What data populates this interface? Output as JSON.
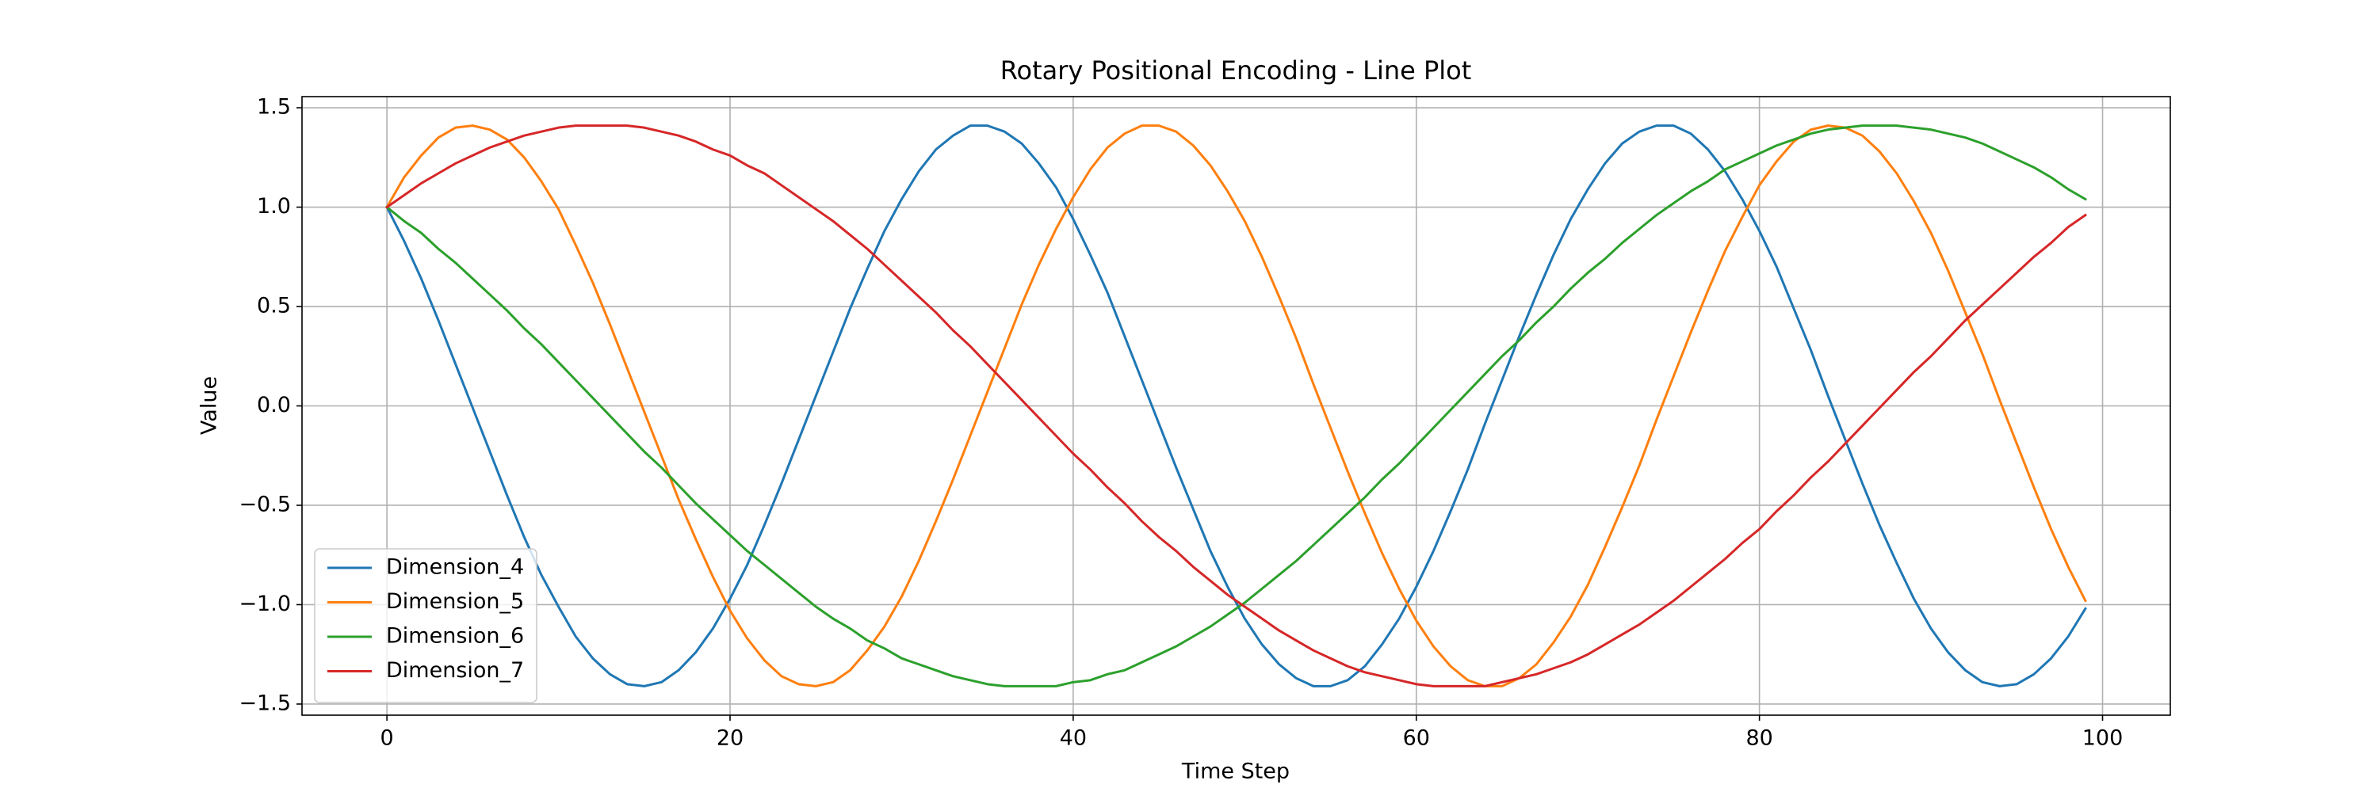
{
  "chart_data": {
    "type": "line",
    "title": "Rotary Positional Encoding - Line Plot",
    "x_label": "Time Step",
    "y_label": "Value",
    "x": [
      0,
      1,
      2,
      3,
      4,
      5,
      6,
      7,
      8,
      9,
      10,
      11,
      12,
      13,
      14,
      15,
      16,
      17,
      18,
      19,
      20,
      21,
      22,
      23,
      24,
      25,
      26,
      27,
      28,
      29,
      30,
      31,
      32,
      33,
      34,
      35,
      36,
      37,
      38,
      39,
      40,
      41,
      42,
      43,
      44,
      45,
      46,
      47,
      48,
      49,
      50,
      51,
      52,
      53,
      54,
      55,
      56,
      57,
      58,
      59,
      60,
      61,
      62,
      63,
      64,
      65,
      66,
      67,
      68,
      69,
      70,
      71,
      72,
      73,
      74,
      75,
      76,
      77,
      78,
      79,
      80,
      81,
      82,
      83,
      84,
      85,
      86,
      87,
      88,
      89,
      90,
      91,
      92,
      93,
      94,
      95,
      96,
      97,
      98,
      99
    ],
    "series": [
      {
        "name": "Dimension_4",
        "color": "#1f77b4",
        "values": [
          1.0,
          0.83,
          0.64,
          0.43,
          0.21,
          -0.01,
          -0.23,
          -0.45,
          -0.66,
          -0.85,
          -1.01,
          -1.16,
          -1.27,
          -1.35,
          -1.4,
          -1.41,
          -1.39,
          -1.33,
          -1.24,
          -1.12,
          -0.97,
          -0.8,
          -0.6,
          -0.39,
          -0.17,
          0.05,
          0.27,
          0.49,
          0.69,
          0.88,
          1.04,
          1.18,
          1.29,
          1.36,
          1.41,
          1.41,
          1.38,
          1.32,
          1.22,
          1.1,
          0.94,
          0.76,
          0.57,
          0.35,
          0.13,
          -0.09,
          -0.31,
          -0.52,
          -0.73,
          -0.91,
          -1.07,
          -1.2,
          -1.3,
          -1.37,
          -1.41,
          -1.41,
          -1.38,
          -1.31,
          -1.2,
          -1.07,
          -0.91,
          -0.73,
          -0.53,
          -0.32,
          -0.09,
          0.13,
          0.35,
          0.56,
          0.76,
          0.94,
          1.09,
          1.22,
          1.32,
          1.38,
          1.41,
          1.41,
          1.37,
          1.29,
          1.18,
          1.04,
          0.88,
          0.7,
          0.49,
          0.28,
          0.05,
          -0.17,
          -0.39,
          -0.6,
          -0.79,
          -0.97,
          -1.12,
          -1.24,
          -1.33,
          -1.39,
          -1.41,
          -1.4,
          -1.35,
          -1.27,
          -1.16,
          -1.02
        ]
      },
      {
        "name": "Dimension_5",
        "color": "#ff7f0e",
        "values": [
          1.0,
          1.15,
          1.26,
          1.35,
          1.4,
          1.41,
          1.39,
          1.34,
          1.25,
          1.13,
          0.99,
          0.81,
          0.62,
          0.41,
          0.19,
          -0.03,
          -0.25,
          -0.47,
          -0.67,
          -0.86,
          -1.03,
          -1.17,
          -1.28,
          -1.36,
          -1.4,
          -1.41,
          -1.39,
          -1.33,
          -1.23,
          -1.11,
          -0.96,
          -0.78,
          -0.58,
          -0.37,
          -0.15,
          0.07,
          0.29,
          0.51,
          0.71,
          0.89,
          1.05,
          1.19,
          1.3,
          1.37,
          1.41,
          1.41,
          1.38,
          1.31,
          1.21,
          1.08,
          0.93,
          0.75,
          0.55,
          0.34,
          0.11,
          -0.11,
          -0.33,
          -0.54,
          -0.74,
          -0.92,
          -1.08,
          -1.21,
          -1.31,
          -1.38,
          -1.41,
          -1.41,
          -1.37,
          -1.3,
          -1.19,
          -1.06,
          -0.9,
          -0.71,
          -0.51,
          -0.3,
          -0.07,
          0.15,
          0.37,
          0.58,
          0.78,
          0.95,
          1.11,
          1.23,
          1.33,
          1.39,
          1.41,
          1.4,
          1.36,
          1.28,
          1.17,
          1.03,
          0.87,
          0.68,
          0.47,
          0.26,
          0.03,
          -0.19,
          -0.41,
          -0.62,
          -0.81,
          -0.98
        ]
      },
      {
        "name": "Dimension_6",
        "color": "#2ca02c",
        "values": [
          1.0,
          0.93,
          0.87,
          0.79,
          0.72,
          0.64,
          0.56,
          0.48,
          0.39,
          0.31,
          0.22,
          0.13,
          0.04,
          -0.05,
          -0.14,
          -0.23,
          -0.31,
          -0.4,
          -0.49,
          -0.57,
          -0.65,
          -0.73,
          -0.8,
          -0.87,
          -0.94,
          -1.01,
          -1.07,
          -1.12,
          -1.18,
          -1.22,
          -1.27,
          -1.3,
          -1.33,
          -1.36,
          -1.38,
          -1.4,
          -1.41,
          -1.41,
          -1.41,
          -1.41,
          -1.39,
          -1.38,
          -1.35,
          -1.33,
          -1.29,
          -1.25,
          -1.21,
          -1.16,
          -1.11,
          -1.05,
          -0.99,
          -0.92,
          -0.85,
          -0.78,
          -0.7,
          -0.62,
          -0.54,
          -0.46,
          -0.37,
          -0.29,
          -0.2,
          -0.11,
          -0.02,
          0.07,
          0.16,
          0.25,
          0.33,
          0.42,
          0.5,
          0.59,
          0.67,
          0.74,
          0.82,
          0.89,
          0.96,
          1.02,
          1.08,
          1.13,
          1.19,
          1.23,
          1.27,
          1.31,
          1.34,
          1.37,
          1.39,
          1.4,
          1.41,
          1.41,
          1.41,
          1.4,
          1.39,
          1.37,
          1.35,
          1.32,
          1.28,
          1.24,
          1.2,
          1.15,
          1.09,
          1.04
        ]
      },
      {
        "name": "Dimension_7",
        "color": "#d62728",
        "values": [
          1.0,
          1.06,
          1.12,
          1.17,
          1.22,
          1.26,
          1.3,
          1.33,
          1.36,
          1.38,
          1.4,
          1.41,
          1.41,
          1.41,
          1.41,
          1.4,
          1.38,
          1.36,
          1.33,
          1.29,
          1.26,
          1.21,
          1.17,
          1.11,
          1.05,
          0.99,
          0.93,
          0.86,
          0.79,
          0.71,
          0.63,
          0.55,
          0.47,
          0.38,
          0.3,
          0.21,
          0.12,
          0.03,
          -0.06,
          -0.15,
          -0.24,
          -0.32,
          -0.41,
          -0.49,
          -0.58,
          -0.66,
          -0.73,
          -0.81,
          -0.88,
          -0.95,
          -1.01,
          -1.07,
          -1.13,
          -1.18,
          -1.23,
          -1.27,
          -1.31,
          -1.34,
          -1.36,
          -1.38,
          -1.4,
          -1.41,
          -1.41,
          -1.41,
          -1.41,
          -1.39,
          -1.37,
          -1.35,
          -1.32,
          -1.29,
          -1.25,
          -1.2,
          -1.15,
          -1.1,
          -1.04,
          -0.98,
          -0.91,
          -0.84,
          -0.77,
          -0.69,
          -0.62,
          -0.53,
          -0.45,
          -0.36,
          -0.28,
          -0.19,
          -0.1,
          -0.01,
          0.08,
          0.17,
          0.25,
          0.34,
          0.43,
          0.51,
          0.59,
          0.67,
          0.75,
          0.82,
          0.9,
          0.96
        ]
      }
    ],
    "xlim": [
      -4.95,
      103.95
    ],
    "xticks": [
      0,
      20,
      40,
      60,
      80,
      100
    ],
    "ylim": [
      -1.556,
      1.556
    ],
    "yticks": [
      {
        "value": -1.5,
        "label": "−1.5"
      },
      {
        "value": -1,
        "label": "−1.0"
      },
      {
        "value": -0.5,
        "label": "−0.5"
      },
      {
        "value": 0,
        "label": "0.0"
      },
      0.5,
      {
        "value": 1,
        "label": "1.0"
      },
      1.5
    ],
    "grid": true,
    "legend": "lower left"
  }
}
